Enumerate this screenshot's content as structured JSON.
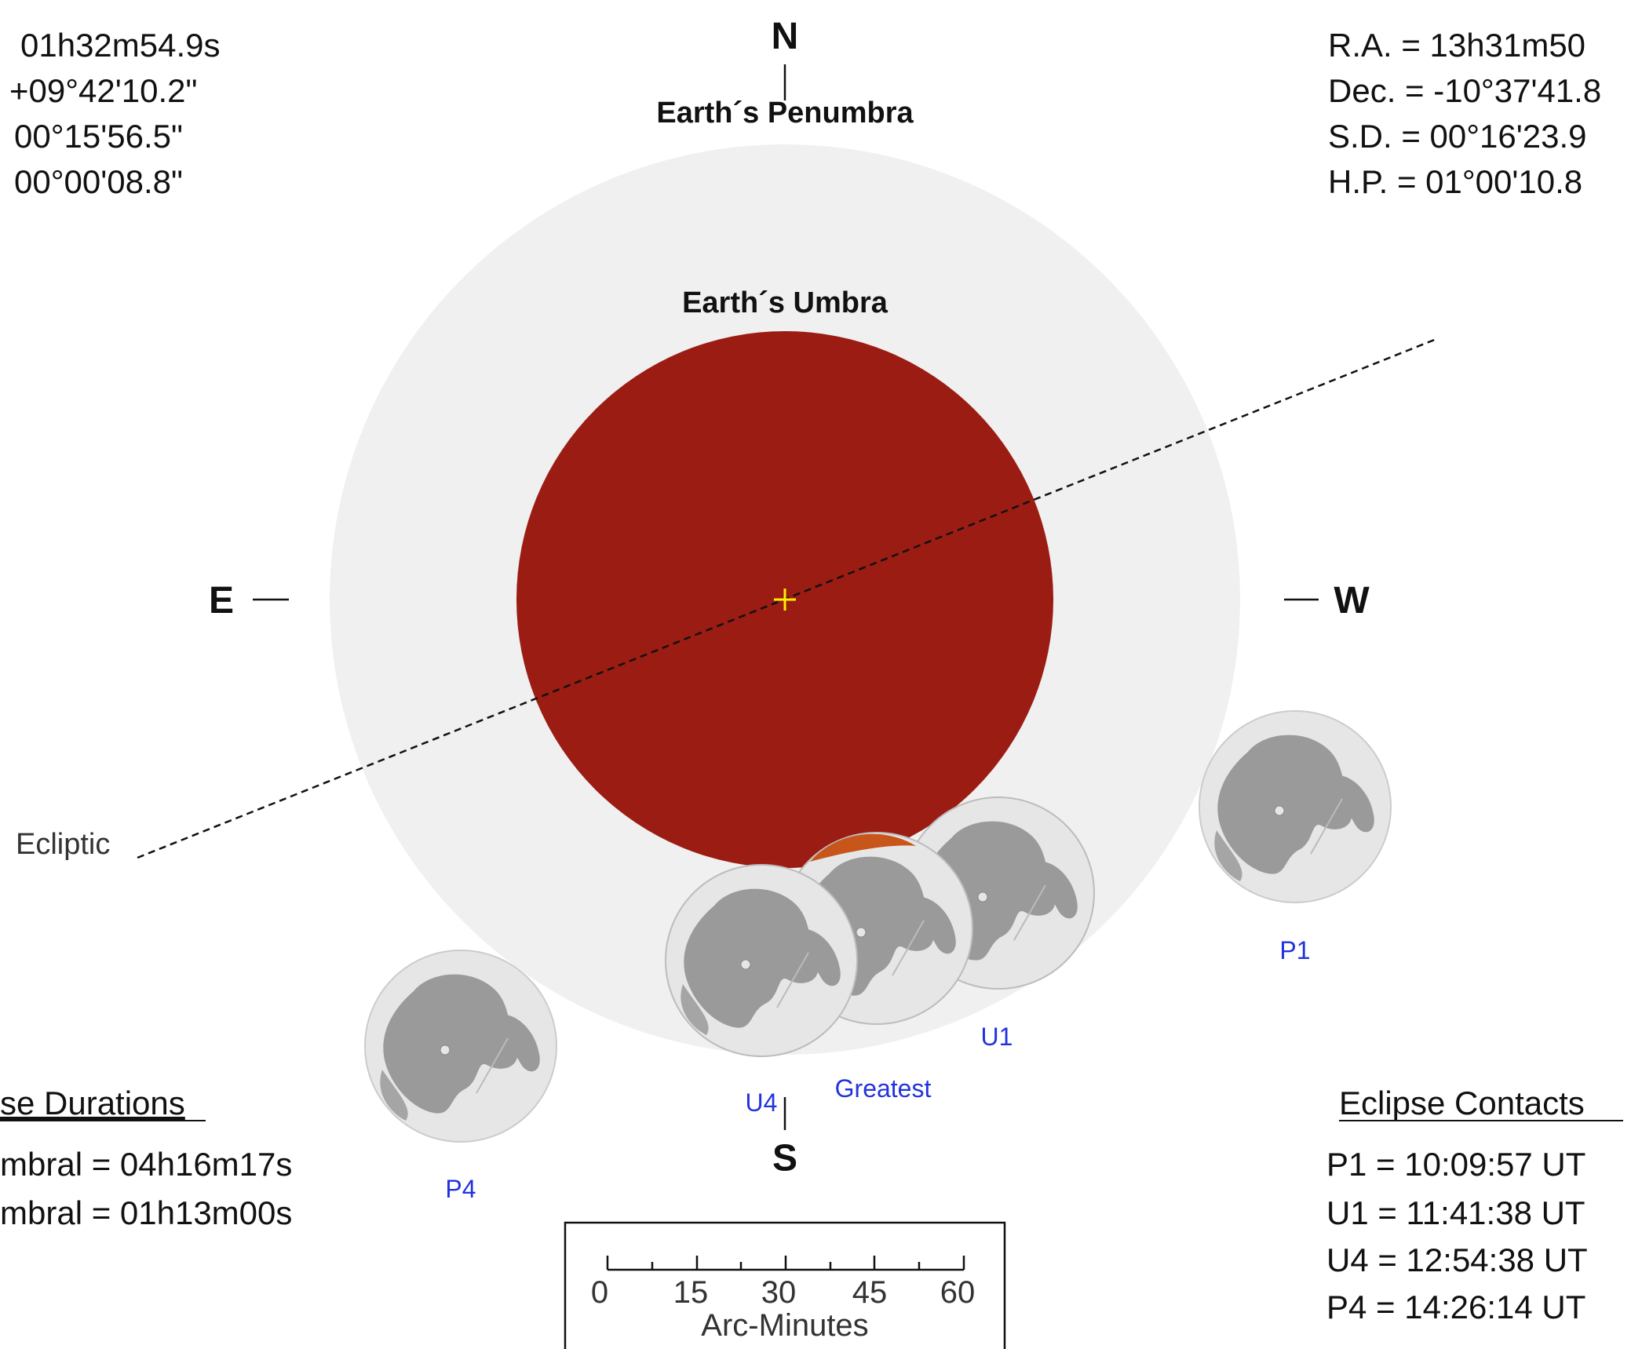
{
  "left_block": {
    "ra": "01h32m54.9s",
    "dec": "+09°42'10.2\"",
    "sd": "00°15'56.5\"",
    "hp": "00°00'08.8\""
  },
  "right_block": {
    "ra": "R.A. =  13h31m50",
    "dec": "Dec. = -10°37'41.8",
    "sd": "S.D. =  00°16'23.9",
    "hp": "H.P. =  01°00'10.8"
  },
  "compass": {
    "north": "N",
    "south": "S",
    "east": "E",
    "west": "W"
  },
  "labels": {
    "penumbra": "Earth´s Penumbra",
    "umbra": "Earth´s Umbra",
    "ecliptic": "Ecliptic"
  },
  "moon_labels": {
    "p1": "P1",
    "u1": "U1",
    "greatest": "Greatest",
    "u4": "U4",
    "p4": "P4"
  },
  "durations": {
    "heading": "se Durations",
    "penumbral": "mbral = 04h16m17s",
    "umbral": "mbral = 01h13m00s"
  },
  "contacts": {
    "heading": "Eclipse Contacts",
    "p1": "P1 = 10:09:57 UT",
    "u1": "U1 = 11:41:38 UT",
    "u4": "U4 = 12:54:38 UT",
    "p4": "P4 = 14:26:14 UT"
  },
  "scale": {
    "ticks": [
      "0",
      "15",
      "30",
      "45",
      "60"
    ],
    "label": "Arc-Minutes"
  },
  "colors": {
    "penumbra": "#f0f0f0",
    "umbra": "#9b1c12",
    "moon": "#e6e6e6",
    "maria": "#999999",
    "label_blue": "#2233dd",
    "center_cross": "#ffee00"
  }
}
